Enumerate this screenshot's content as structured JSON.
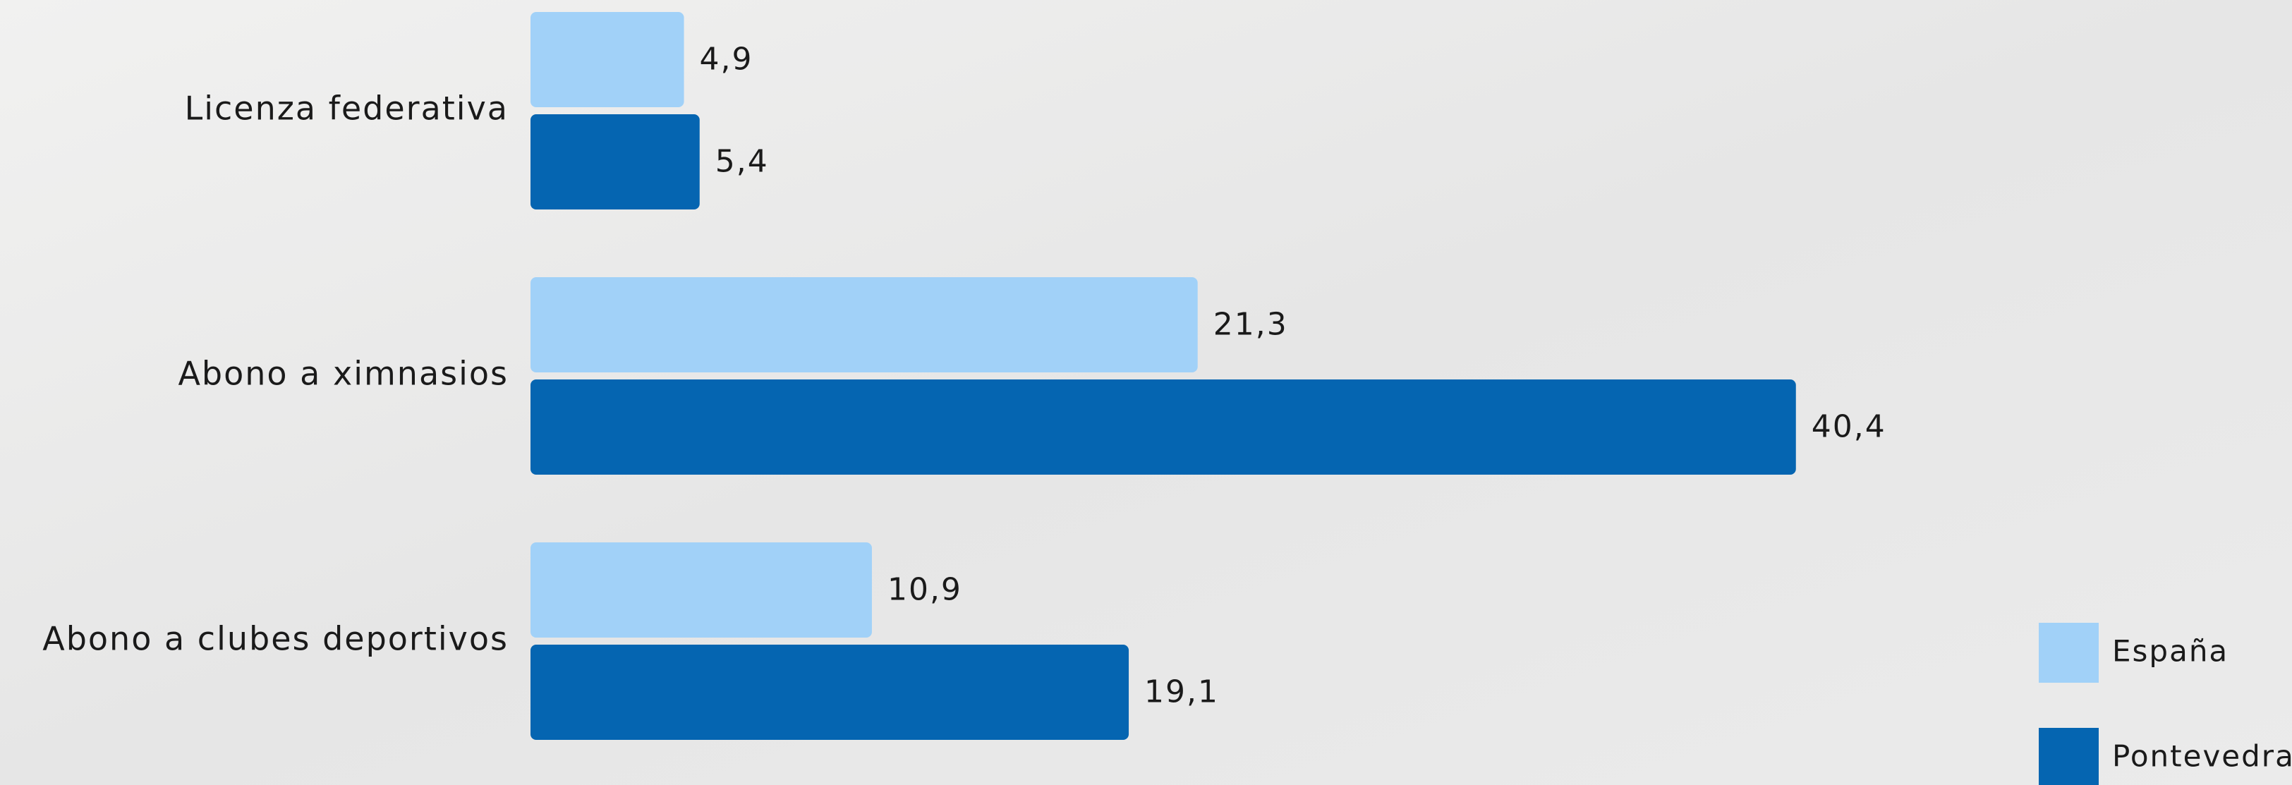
{
  "chart_data": {
    "type": "bar",
    "orientation": "horizontal",
    "categories": [
      "Licenza federativa",
      "Abono a ximnasios",
      "Abono a clubes deportivos"
    ],
    "series": [
      {
        "name": "España",
        "color": "#a1d1f8",
        "values": [
          4.9,
          21.3,
          10.9
        ],
        "value_labels": [
          "4,9",
          "21,3",
          "10,9"
        ]
      },
      {
        "name": "Pontevedra",
        "color": "#0565b1",
        "values": [
          5.4,
          40.4,
          19.1
        ],
        "value_labels": [
          "5,4",
          "40,4",
          "19,1"
        ]
      }
    ],
    "legend": "bottom-right"
  }
}
